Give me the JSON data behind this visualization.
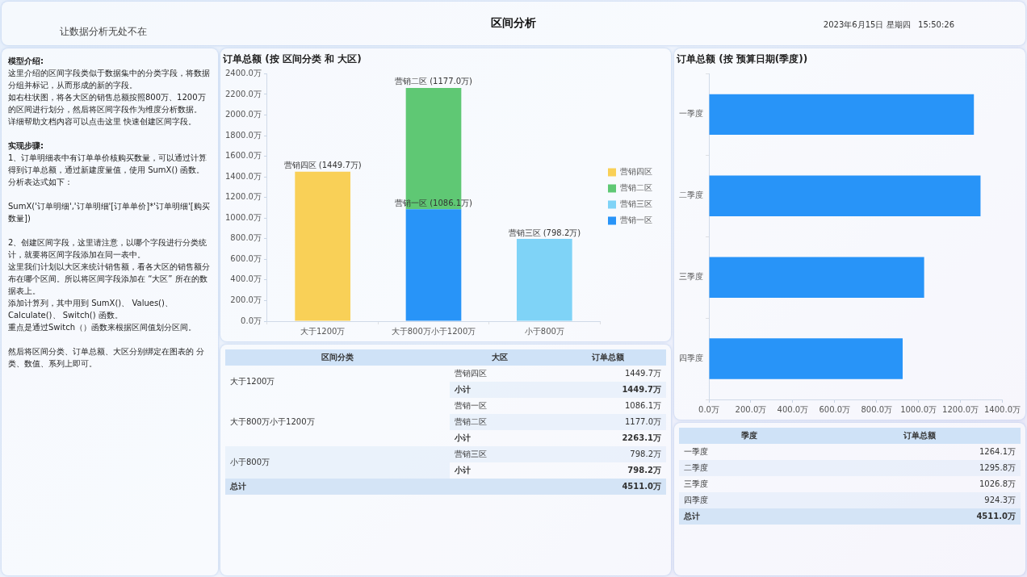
{
  "chart_data": [
    {
      "type": "other",
      "title": "区间分析",
      "subtitle": "让数据分析无处不在",
      "annotations": [
        "2023年6月15日 星期四   15:50:26",
        "模型介绍:",
        "这里介绍的区间字段类似于数据集中的分类字段，将数据分组并标记，从而形成的新的字段。",
        "如右柱状图，将各大区的销售总额按照800万、1200万的区间进行划分，然后将区间字段作为维度分析数据。",
        "详细帮助文档内容可以点击这里 快速创建区间字段。",
        "实现步骤:",
        "1、订单明细表中有订单单价核购买数量，可以通过计算得到订单总额，通过新建度量值，使用 SumX() 函数。",
        "分析表达式如下：",
        "SumX('订单明细','订单明细'[订单单价]*'订单明细'[购买数量])",
        "2、创建区间字段，这里请注意，以哪个字段进行分类统计，就要将区间字段添加在同一表中。",
        "这里我们计划以大区来统计销售额，看各大区的销售额分布在哪个区间。所以将区间字段添加在 “大区” 所在的数据表上。",
        "添加计算列，其中用到 SumX()、 Values()、 Calculate()、 Switch() 函数。",
        "重点是通过Switch（）函数来根据区间值划分区间。",
        "然后将区间分类、订单总额、大区分别绑定在图表的 分类、数值、系列上即可。"
      ]
    },
    {
      "type": "bar",
      "title": "订单总额 (按 区间分类 和 大区)",
      "categories": [
        "大于1200万",
        "大于800万小于1200万",
        "小于800万"
      ],
      "stacked": true,
      "legend": "right",
      "ylim": [
        0,
        2400
      ],
      "yticks": [
        {
          "value": 0,
          "label": "0.0万"
        },
        {
          "value": 200,
          "label": "200.0万"
        },
        {
          "value": 400,
          "label": "400.0万"
        },
        {
          "value": 600,
          "label": "600.0万"
        },
        {
          "value": 800,
          "label": "800.0万"
        },
        {
          "value": 1000,
          "label": "1000.0万"
        },
        {
          "value": 1200,
          "label": "1200.0万"
        },
        {
          "value": 1400,
          "label": "1400.0万"
        },
        {
          "value": 1600,
          "label": "1600.0万"
        },
        {
          "value": 1800,
          "label": "1800.0万"
        },
        {
          "value": 2000,
          "label": "2000.0万"
        },
        {
          "value": 2200,
          "label": "2200.0万"
        },
        {
          "value": 2400,
          "label": "2400.0万"
        }
      ],
      "series": [
        {
          "name": "营销一区",
          "color": "#2894f8",
          "values": [
            null,
            1086.1,
            null
          ],
          "value_labels": [
            null,
            "营销一区 (1086.1万)",
            null
          ]
        },
        {
          "name": "营销三区",
          "color": "#7fd3f7",
          "values": [
            null,
            null,
            798.2
          ],
          "value_labels": [
            null,
            null,
            "营销三区 (798.2万)"
          ]
        },
        {
          "name": "营销二区",
          "color": "#5fc874",
          "values": [
            null,
            1177.0,
            null
          ],
          "value_labels": [
            null,
            "营销二区 (1177.0万)",
            null
          ]
        },
        {
          "name": "营销四区",
          "color": "#f9d057",
          "values": [
            1449.7,
            null,
            null
          ],
          "value_labels": [
            "营销四区 (1449.7万)",
            null,
            null
          ]
        }
      ]
    },
    {
      "type": "bar",
      "orientation": "horizontal",
      "title": "订单总额 (按 预算日期(季度))",
      "categories": [
        "一季度",
        "二季度",
        "三季度",
        "四季度"
      ],
      "values": [
        1264.1,
        1295.8,
        1026.8,
        924.3
      ],
      "color": "#2894f8",
      "xlim": [
        0,
        1400
      ],
      "xticks": [
        {
          "value": 0,
          "label": "0.0万"
        },
        {
          "value": 200,
          "label": "200.0万"
        },
        {
          "value": 400,
          "label": "400.0万"
        },
        {
          "value": 600,
          "label": "600.0万"
        },
        {
          "value": 800,
          "label": "800.0万"
        },
        {
          "value": 1000,
          "label": "1000.0万"
        },
        {
          "value": 1200,
          "label": "1200.0万"
        },
        {
          "value": 1400,
          "label": "1400.0万"
        }
      ]
    },
    {
      "type": "other",
      "categories": [
        "区间分类",
        "大区",
        "订单总额"
      ],
      "cell_labels": [
        [
          "大于1200万",
          "营销四区",
          "1449.7万"
        ],
        [
          null,
          "小计",
          "1449.7万"
        ],
        [
          "大于800万小于1200万",
          "营销一区",
          "1086.1万"
        ],
        [
          null,
          "营销二区",
          "1177.0万"
        ],
        [
          null,
          "小计",
          "2263.1万"
        ],
        [
          "小于800万",
          "营销三区",
          "798.2万"
        ],
        [
          null,
          "小计",
          "798.2万"
        ],
        [
          "总计",
          null,
          "4511.0万"
        ]
      ]
    },
    {
      "type": "other",
      "categories": [
        "季度",
        "订单总额"
      ],
      "cell_labels": [
        [
          "一季度",
          "1264.1万"
        ],
        [
          "二季度",
          "1295.8万"
        ],
        [
          "三季度",
          "1026.8万"
        ],
        [
          "四季度",
          "924.3万"
        ],
        [
          "总计",
          "4511.0万"
        ]
      ]
    }
  ]
}
